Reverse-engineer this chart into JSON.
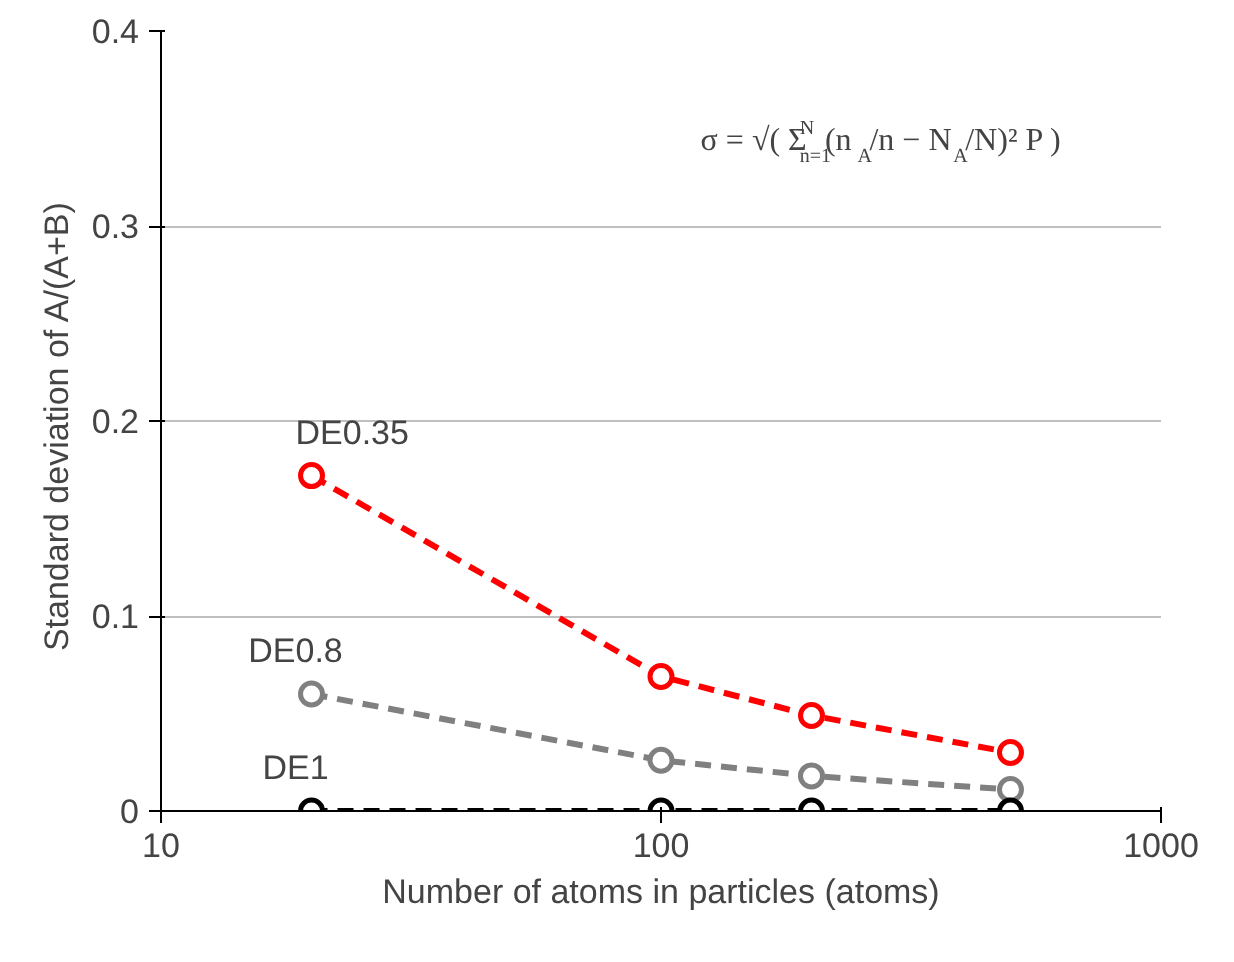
{
  "chart_data": {
    "type": "line",
    "xlabel": "Number of atoms in particles (atoms)",
    "ylabel": "Standard deviation of  A/(A+B)",
    "log": "x",
    "xlim": [
      10,
      1000
    ],
    "xticks": [
      10,
      100,
      1000
    ],
    "ylim": [
      0,
      0.4
    ],
    "yticks": [
      0,
      0.1,
      0.2,
      0.3,
      0.4
    ],
    "grid": "y",
    "marker": "circle",
    "line_style": "dashed",
    "annotations": [
      "σ = √( Σ$^{N}$$_{n=1}$(n$_{A}$/n − N$_{A}$/N)² P )"
    ],
    "series": [
      {
        "name": "DE0.35",
        "color": "#ff0000",
        "x": [
          20,
          100,
          200,
          500
        ],
        "values": [
          0.172,
          0.069,
          0.049,
          0.03
        ]
      },
      {
        "name": "DE0.8",
        "color": "#808080",
        "x": [
          20,
          100,
          200,
          500
        ],
        "values": [
          0.06,
          0.026,
          0.018,
          0.011
        ]
      },
      {
        "name": "DE1",
        "color": "#000000",
        "x": [
          20,
          100,
          200,
          500
        ],
        "values": [
          0,
          0,
          0,
          0
        ]
      }
    ]
  }
}
